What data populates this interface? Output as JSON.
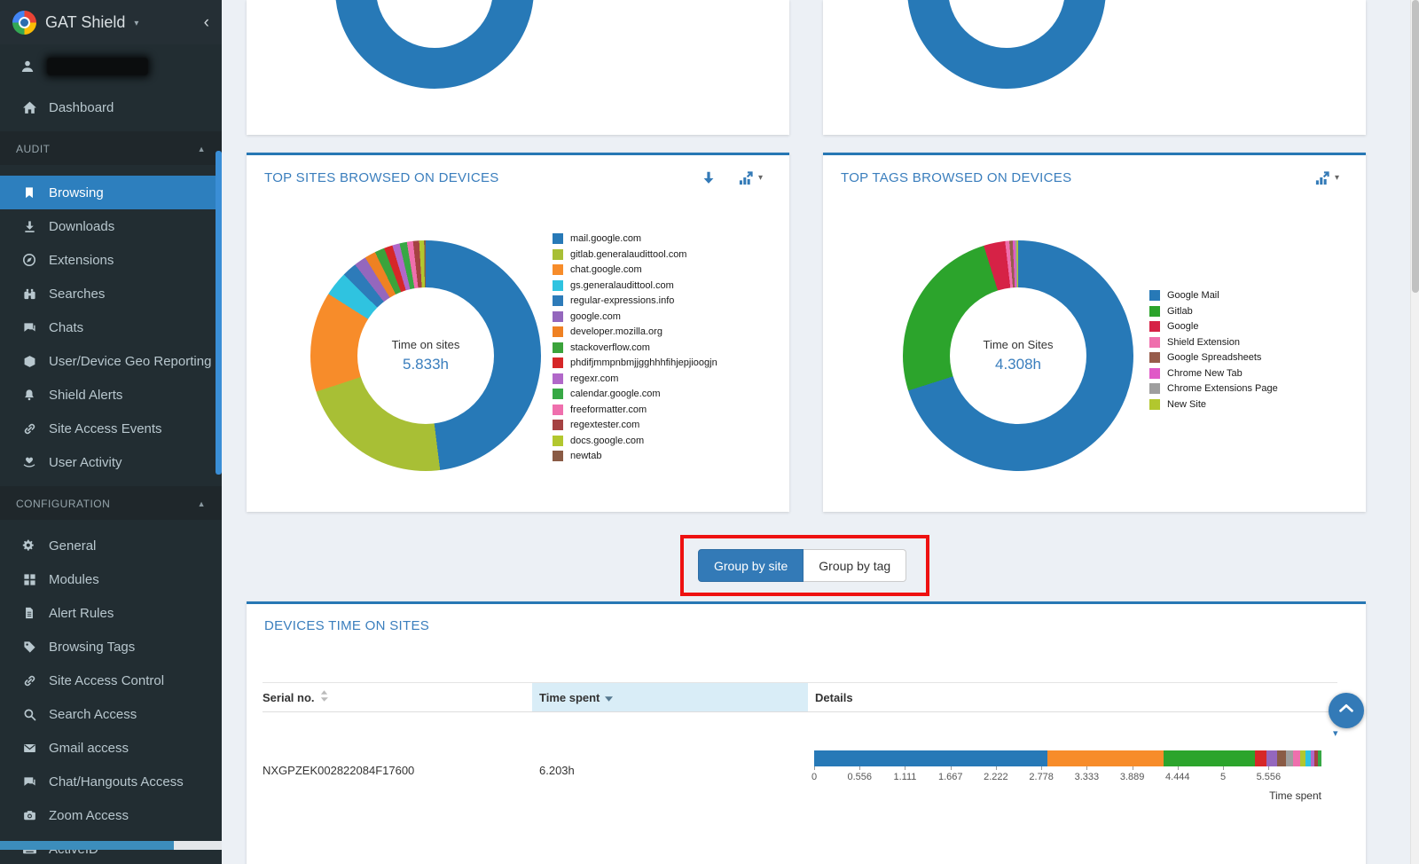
{
  "colors": {
    "accent_blue": "#337ab7",
    "card_top_border": "#2777b4",
    "title_blue": "#3a7ebd",
    "sidebar_bg": "#222d32",
    "sidebar_active_bg": "#2d7fbe",
    "annotation_red": "#ee1111",
    "content_bg": "#ecf0f5",
    "partial_donut_blue": "#2779b7",
    "sorted_header_bg": "#d9edf7"
  },
  "sidebar": {
    "brand": "GAT Shield",
    "dashboard_label": "Dashboard",
    "sections": [
      {
        "label": "AUDIT"
      },
      {
        "label": "CONFIGURATION"
      }
    ],
    "audit_items": [
      {
        "label": "Browsing",
        "icon": "bookmark",
        "active": true
      },
      {
        "label": "Downloads",
        "icon": "download"
      },
      {
        "label": "Extensions",
        "icon": "compass"
      },
      {
        "label": "Searches",
        "icon": "binoculars"
      },
      {
        "label": "Chats",
        "icon": "chat"
      },
      {
        "label": "User/Device Geo Reporting",
        "icon": "cube"
      },
      {
        "label": "Shield Alerts",
        "icon": "bell"
      },
      {
        "label": "Site Access Events",
        "icon": "link"
      },
      {
        "label": "User Activity",
        "icon": "activity"
      }
    ],
    "config_items": [
      {
        "label": "General",
        "icon": "gears"
      },
      {
        "label": "Modules",
        "icon": "modules"
      },
      {
        "label": "Alert Rules",
        "icon": "file"
      },
      {
        "label": "Browsing Tags",
        "icon": "tag"
      },
      {
        "label": "Site Access Control",
        "icon": "link"
      },
      {
        "label": "Search Access",
        "icon": "search"
      },
      {
        "label": "Gmail access",
        "icon": "envelope"
      },
      {
        "label": "Chat/Hangouts Access",
        "icon": "chat"
      },
      {
        "label": "Zoom Access",
        "icon": "camera"
      },
      {
        "label": "ActiveID",
        "icon": "keyboard"
      }
    ]
  },
  "cards": {
    "sites_title": "TOP SITES BROWSED ON DEVICES",
    "tags_title": "TOP TAGS BROWSED ON DEVICES",
    "devices_title": "DEVICES TIME ON SITES"
  },
  "toggle": {
    "group_by_site": "Group by site",
    "group_by_tag": "Group by tag"
  },
  "table": {
    "headers": {
      "serial": "Serial no.",
      "time": "Time spent",
      "details": "Details"
    },
    "rows": [
      {
        "serial": "NXGPZEK002822084F17600",
        "time_spent": "6.203h"
      }
    ],
    "axis_label": "Time spent"
  },
  "chart_data": [
    {
      "type": "pie",
      "donut": true,
      "title": "TOP SITES BROWSED ON DEVICES",
      "center_label": "Time on sites",
      "center_value": "5.833h",
      "total_hours": 5.833,
      "legend_position": "right",
      "labels": [
        "mail.google.com",
        "gitlab.generalaudittool.com",
        "chat.google.com",
        "gs.generalaudittool.com",
        "regular-expressions.info",
        "google.com",
        "developer.mozilla.org",
        "stackoverflow.com",
        "phdifjmmpnbmjjgghhhfihjepjioogjn",
        "regexr.com",
        "calendar.google.com",
        "freeformatter.com",
        "regextester.com",
        "docs.google.com",
        "newtab"
      ],
      "values": [
        2.8,
        1.28,
        0.82,
        0.2,
        0.12,
        0.1,
        0.09,
        0.08,
        0.07,
        0.06,
        0.06,
        0.05,
        0.05,
        0.04,
        0.013
      ],
      "colors": [
        "#2779b7",
        "#a8bf35",
        "#f78c2a",
        "#2fc3e0",
        "#2d7bb9",
        "#9467bd",
        "#ef8122",
        "#3ba33b",
        "#d62728",
        "#b168c9",
        "#37a845",
        "#ef6fad",
        "#a54242",
        "#b2c72e",
        "#8a5b45"
      ]
    },
    {
      "type": "pie",
      "donut": true,
      "title": "TOP TAGS BROWSED ON DEVICES",
      "center_label": "Time on Sites",
      "center_value": "4.308h",
      "total_hours": 4.308,
      "legend_position": "right",
      "labels": [
        "Google Mail",
        "Gitlab",
        "Google",
        "Shield Extension",
        "Google Spreadsheets",
        "Chrome New Tab",
        "Chrome Extensions Page",
        "New Site"
      ],
      "values": [
        3.02,
        1.08,
        0.13,
        0.025,
        0.02,
        0.015,
        0.01,
        0.008
      ],
      "colors": [
        "#2779b7",
        "#2ca42c",
        "#d62246",
        "#ef6fad",
        "#975c4b",
        "#e059c7",
        "#9e9e9e",
        "#b2c72e"
      ]
    },
    {
      "type": "bar",
      "subtype": "stacked-horizontal",
      "title": "Devices time on sites - NXGPZEK002822084F17600",
      "total": 6.203,
      "max": 6.203,
      "values": [
        2.85,
        1.42,
        1.12,
        0.14,
        0.13,
        0.11,
        0.09,
        0.08,
        0.07,
        0.06,
        0.05,
        0.04,
        0.043
      ],
      "colors": [
        "#2779b7",
        "#f78c2a",
        "#2ca42c",
        "#d62728",
        "#9467bd",
        "#8a5b45",
        "#9e9e9e",
        "#ef6fad",
        "#b2c72e",
        "#2fc3e0",
        "#b168c9",
        "#a54242",
        "#37a845"
      ],
      "tick_values": [
        0,
        0.556,
        1.111,
        1.667,
        2.222,
        2.778,
        3.333,
        3.889,
        4.444,
        5,
        5.556
      ],
      "tick_labels": [
        "0",
        "0.556",
        "1.111",
        "1.667",
        "2.222",
        "2.778",
        "3.333",
        "3.889",
        "4.444",
        "5",
        "5.556"
      ],
      "axis_label": "Time spent"
    }
  ]
}
